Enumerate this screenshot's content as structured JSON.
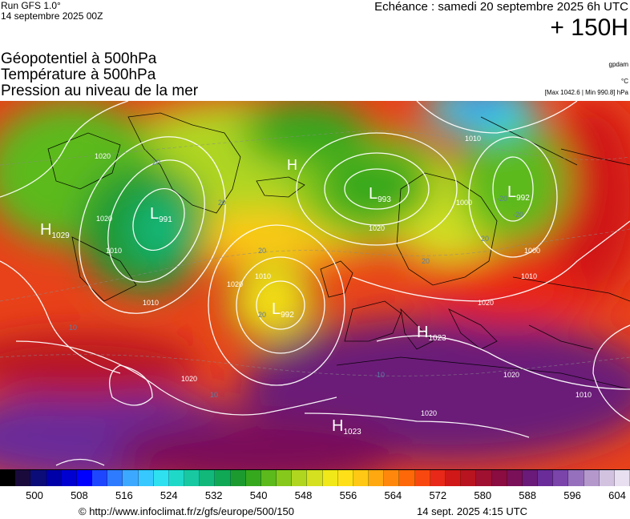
{
  "header": {
    "run": "Run GFS 1.0°",
    "run_date": "14 septembre 2025 00Z",
    "echeance": "Echéance : samedi 20 septembre 2025 6h UTC",
    "horizon": "+ 150H"
  },
  "parameters": [
    "Géopotentiel à 500hPa",
    "Température à 500hPa",
    "Pression au niveau de la mer"
  ],
  "units": {
    "geopotential": "gpdam",
    "temperature": "°C",
    "pressure_extremes": "[Max 1042.6 | Min 990.8] hPa"
  },
  "pressure_centers": [
    {
      "type": "H",
      "value": "1029"
    },
    {
      "type": "L",
      "value": "991"
    },
    {
      "type": "H",
      "value": ""
    },
    {
      "type": "L",
      "value": "993"
    },
    {
      "type": "L",
      "value": "992"
    },
    {
      "type": "L",
      "value": "992"
    },
    {
      "type": "H",
      "value": "1023"
    },
    {
      "type": "H",
      "value": "1023"
    }
  ],
  "isobar_labels": [
    "1020",
    "1010",
    "1020",
    "1010",
    "1020",
    "1010",
    "1000",
    "1020",
    "1010",
    "1000",
    "1020",
    "1020",
    "1010",
    "1020",
    "1020",
    "1010"
  ],
  "temperature_labels": [
    "20",
    "20",
    "20",
    "20",
    "20",
    "20",
    "10",
    "10",
    "10",
    "-20",
    "-20"
  ],
  "color_scale": {
    "colors": [
      "#000000",
      "#1a0a3c",
      "#0c0c78",
      "#0000a8",
      "#0000d0",
      "#0000ff",
      "#1e46ff",
      "#2f7bff",
      "#3da8ff",
      "#36c8ff",
      "#2ee0f0",
      "#20d8c8",
      "#18c8a0",
      "#12b87a",
      "#10a854",
      "#1c9a30",
      "#36a81e",
      "#5cba1c",
      "#86c81c",
      "#b0d620",
      "#d4e020",
      "#f0e818",
      "#ffe018",
      "#ffc814",
      "#ffa810",
      "#ff880c",
      "#ff6808",
      "#f84810",
      "#e82818",
      "#d01818",
      "#b81420",
      "#a01030",
      "#8a0c40",
      "#7a1058",
      "#6a1a78",
      "#6a2c98",
      "#7a44aa",
      "#9670bc",
      "#b498cc",
      "#d2c2e0",
      "#e8e0f0"
    ],
    "ticks": [
      "500",
      "508",
      "516",
      "524",
      "532",
      "540",
      "548",
      "556",
      "564",
      "572",
      "580",
      "588",
      "596",
      "604"
    ]
  },
  "footer": {
    "url": "© http://www.infoclimat.fr/z/gfs/europe/500/150",
    "timestamp": "14 sept. 2025  4:15 UTC"
  }
}
